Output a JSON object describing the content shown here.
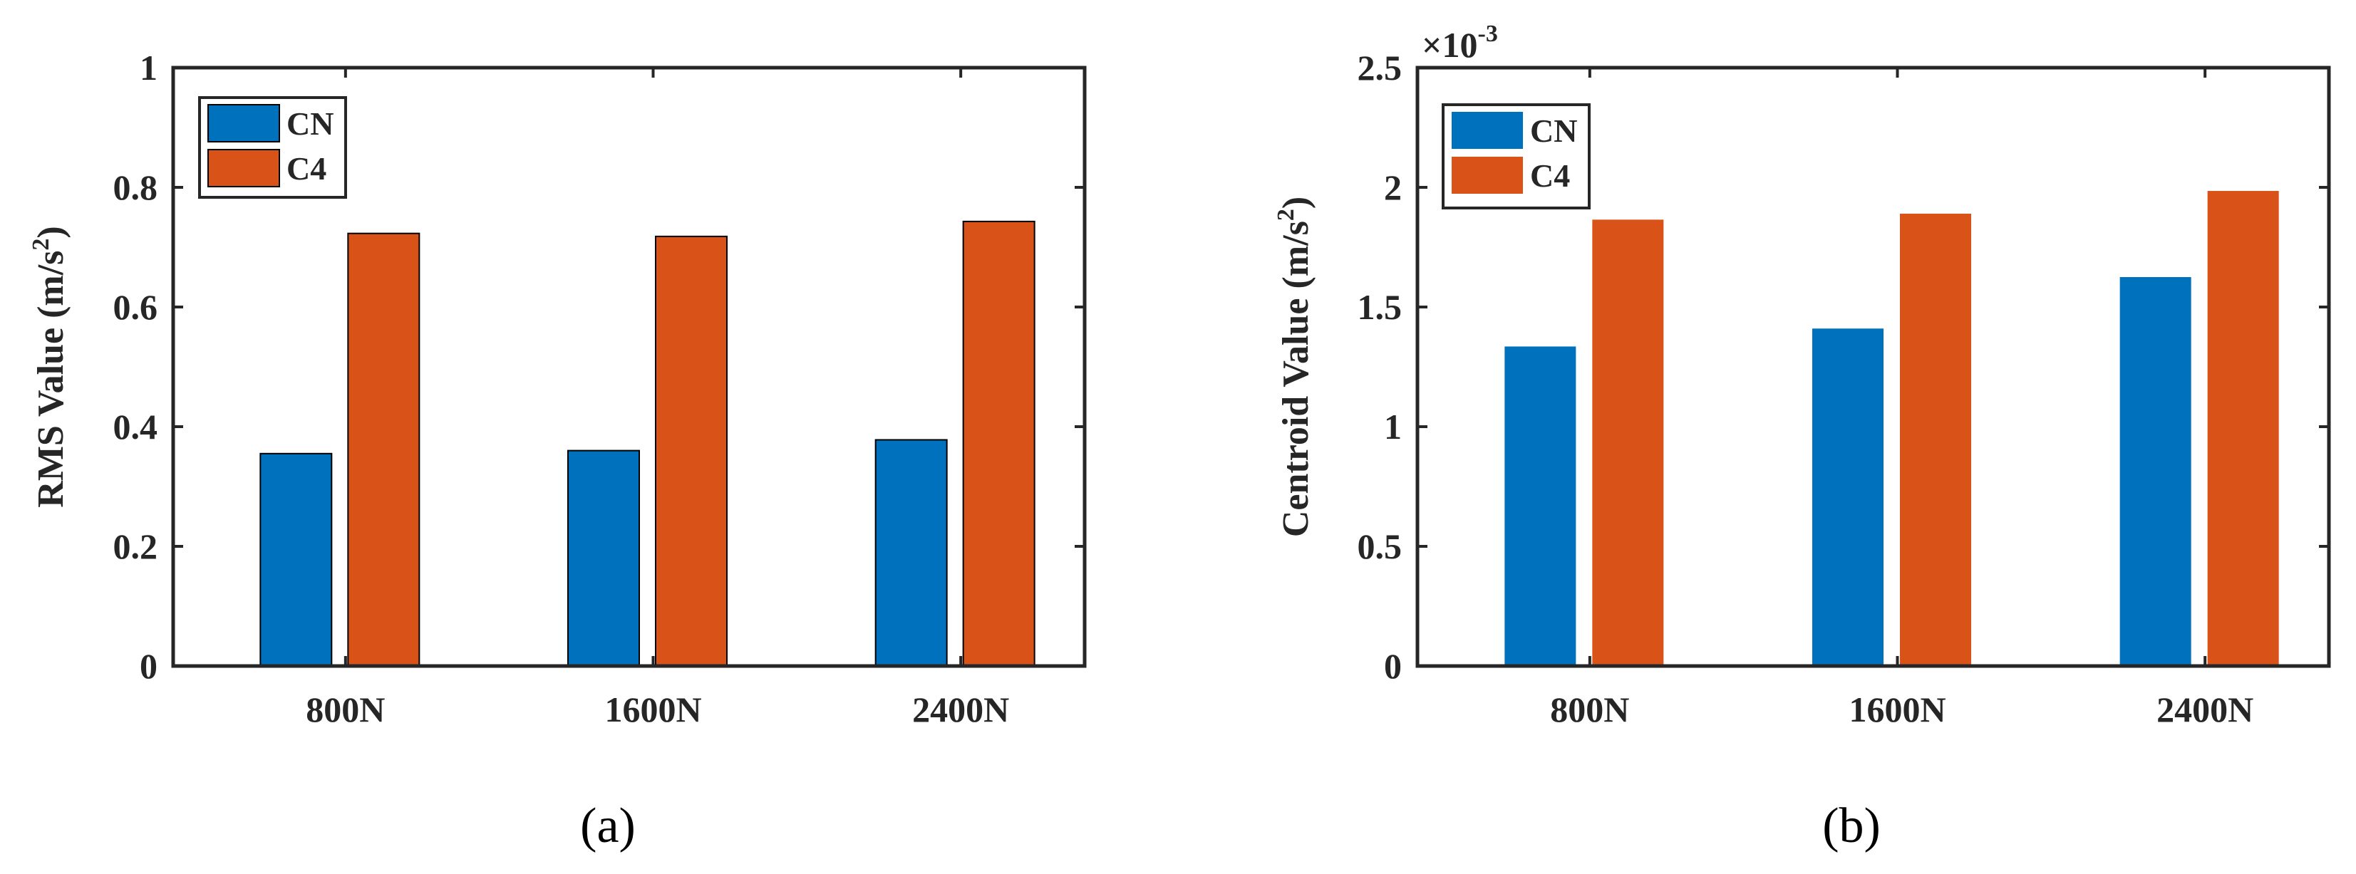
{
  "colors": {
    "CN": "#0072BD",
    "C4": "#D95319",
    "axis": "#262626"
  },
  "chart_data": [
    {
      "type": "bar",
      "panel_caption": "(a)",
      "categories": [
        "800N",
        "1600N",
        "2400N"
      ],
      "series": [
        {
          "name": "CN",
          "values": [
            0.355,
            0.36,
            0.378
          ]
        },
        {
          "name": "C4",
          "values": [
            0.723,
            0.718,
            0.743
          ]
        }
      ],
      "ylabel": "RMS Value (m/s",
      "ylabel_sup": "2",
      "ylabel_close": ")",
      "xlabel": "",
      "ylim": [
        0,
        1
      ],
      "yticks": [
        "0",
        "0.2",
        "0.4",
        "0.6",
        "0.8",
        "1"
      ],
      "ytick_values": [
        0,
        0.2,
        0.4,
        0.6,
        0.8,
        1
      ],
      "legend": [
        "CN",
        "C4"
      ],
      "legend_position": "top-left",
      "bar_outline": true
    },
    {
      "type": "bar",
      "panel_caption": "(b)",
      "categories": [
        "800N",
        "1600N",
        "2400N"
      ],
      "series": [
        {
          "name": "CN",
          "values": [
            1.335,
            1.41,
            1.625
          ]
        },
        {
          "name": "C4",
          "values": [
            1.865,
            1.89,
            1.985
          ]
        }
      ],
      "ylabel": "Centroid Value (m/s",
      "ylabel_sup": "2",
      "ylabel_close": ")",
      "xlabel": "",
      "ylim": [
        0,
        2.5
      ],
      "yticks": [
        "0",
        "0.5",
        "1",
        "1.5",
        "2",
        "2.5"
      ],
      "ytick_values": [
        0,
        0.5,
        1,
        1.5,
        2,
        2.5
      ],
      "scale_base": "×10",
      "scale_exponent": "-3",
      "legend": [
        "CN",
        "C4"
      ],
      "legend_position": "top-left",
      "bar_outline": false
    }
  ]
}
